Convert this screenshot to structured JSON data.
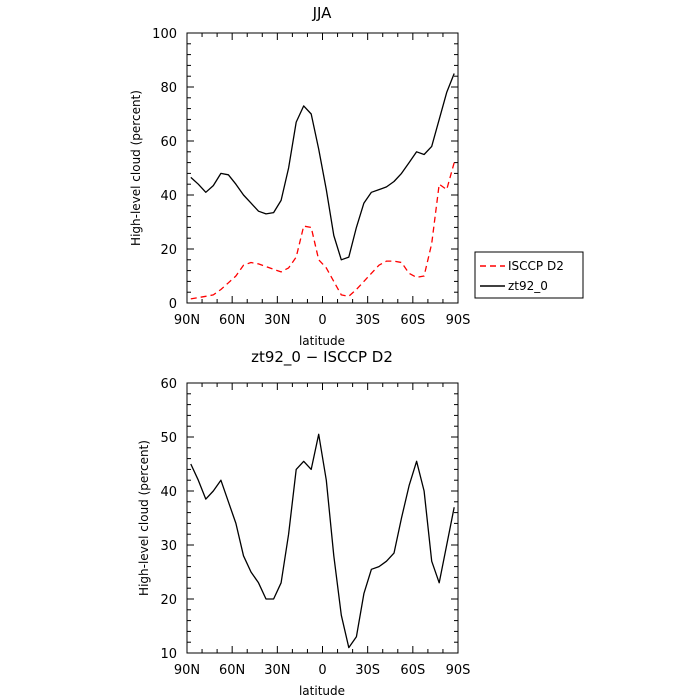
{
  "chart_data": [
    {
      "type": "line",
      "title": "JJA",
      "xlabel": "latitude",
      "ylabel": "High-level cloud (percent)",
      "xlim": [
        90,
        -90
      ],
      "ylim": [
        0,
        100
      ],
      "x_ticks": [
        {
          "value": 90,
          "label": "90N"
        },
        {
          "value": 60,
          "label": "60N"
        },
        {
          "value": 30,
          "label": "30N"
        },
        {
          "value": 0,
          "label": "0"
        },
        {
          "value": -30,
          "label": "30S"
        },
        {
          "value": -60,
          "label": "60S"
        },
        {
          "value": -90,
          "label": "90S"
        }
      ],
      "y_ticks": [
        0,
        20,
        40,
        60,
        80,
        100
      ],
      "grid": false,
      "legend_placement": "right, outside",
      "series": [
        {
          "name": "ISCCP D2",
          "color": "#ff0000",
          "dash": "dashed",
          "x": [
            87.5,
            82.5,
            77.5,
            72.5,
            67.5,
            62.5,
            57.5,
            52.5,
            47.5,
            42.5,
            37.5,
            32.5,
            27.5,
            22.5,
            17.5,
            12.5,
            7.5,
            2.5,
            -2.5,
            -7.5,
            -12.5,
            -17.5,
            -22.5,
            -27.5,
            -32.5,
            -37.5,
            -42.5,
            -47.5,
            -52.5,
            -57.5,
            -62.5,
            -67.5,
            -72.5,
            -77.5,
            -82.5,
            -87.5
          ],
          "y": [
            1.5,
            2,
            2.5,
            3,
            5,
            7.5,
            10,
            14,
            15,
            14.5,
            13.5,
            12.5,
            11.5,
            13,
            17,
            28.5,
            28,
            16,
            13,
            8,
            3,
            2.5,
            5,
            8,
            11,
            14,
            15.5,
            15.5,
            15,
            11,
            9.5,
            10,
            22,
            44,
            42,
            52
          ]
        },
        {
          "name": "zt92_0",
          "color": "#000000",
          "dash": "solid",
          "x": [
            87.5,
            82.5,
            77.5,
            72.5,
            67.5,
            62.5,
            57.5,
            52.5,
            47.5,
            42.5,
            37.5,
            32.5,
            27.5,
            22.5,
            17.5,
            12.5,
            7.5,
            2.5,
            -2.5,
            -7.5,
            -12.5,
            -17.5,
            -22.5,
            -27.5,
            -32.5,
            -37.5,
            -42.5,
            -47.5,
            -52.5,
            -57.5,
            -62.5,
            -67.5,
            -72.5,
            -77.5,
            -82.5,
            -87.5
          ],
          "y": [
            46.5,
            44,
            41,
            43.5,
            48,
            47.5,
            44,
            40,
            37,
            34,
            33,
            33.5,
            38,
            50,
            67,
            73,
            70,
            57,
            42,
            25,
            16,
            17,
            28,
            37,
            41,
            42,
            43,
            45,
            48,
            52,
            56,
            55,
            58,
            68,
            78,
            85
          ]
        }
      ]
    },
    {
      "type": "line",
      "title": "zt92_0 − ISCCP D2",
      "xlabel": "latitude",
      "ylabel": "High-level cloud (percent)",
      "xlim": [
        90,
        -90
      ],
      "ylim": [
        10,
        60
      ],
      "x_ticks": [
        {
          "value": 90,
          "label": "90N"
        },
        {
          "value": 60,
          "label": "60N"
        },
        {
          "value": 30,
          "label": "30N"
        },
        {
          "value": 0,
          "label": "0"
        },
        {
          "value": -30,
          "label": "30S"
        },
        {
          "value": -60,
          "label": "60S"
        },
        {
          "value": -90,
          "label": "90S"
        }
      ],
      "y_ticks": [
        10,
        20,
        30,
        40,
        50,
        60
      ],
      "grid": false,
      "series": [
        {
          "color": "#000000",
          "dash": "solid",
          "x": [
            87.5,
            82.5,
            77.5,
            72.5,
            67.5,
            62.5,
            57.5,
            52.5,
            47.5,
            42.5,
            37.5,
            32.5,
            27.5,
            22.5,
            17.5,
            12.5,
            7.5,
            2.5,
            -2.5,
            -7.5,
            -12.5,
            -17.5,
            -22.5,
            -27.5,
            -32.5,
            -37.5,
            -42.5,
            -47.5,
            -52.5,
            -57.5,
            -62.5,
            -67.5,
            -72.5,
            -77.5,
            -82.5,
            -87.5
          ],
          "y": [
            45,
            42,
            38.5,
            40,
            42,
            38,
            34,
            28,
            25,
            23,
            20,
            20,
            23,
            32,
            44,
            45.5,
            44,
            50.5,
            42,
            28,
            17,
            11,
            13,
            21,
            25.5,
            26,
            27,
            28.5,
            35,
            41,
            45.5,
            40,
            27,
            23,
            30,
            37
          ]
        }
      ]
    }
  ]
}
